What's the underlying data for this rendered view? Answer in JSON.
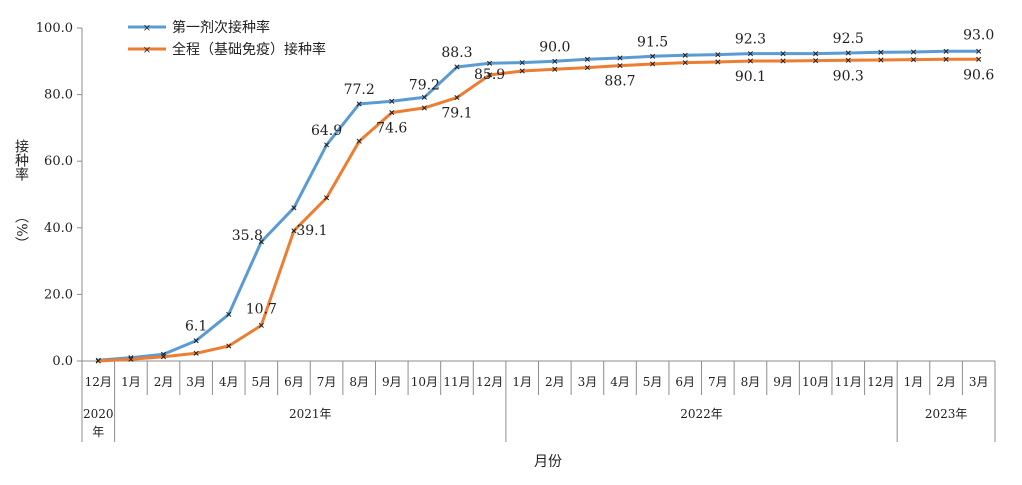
{
  "chart_data": {
    "type": "line",
    "xlabel": "月份",
    "ylabel": "接种率",
    "ylabel_unit": "（%）",
    "ylim": [
      0,
      100
    ],
    "yticks": [
      "0.0",
      "20.0",
      "40.0",
      "60.0",
      "80.0",
      "100.0"
    ],
    "categories": [
      "12月",
      "1月",
      "2月",
      "3月",
      "4月",
      "5月",
      "6月",
      "7月",
      "8月",
      "9月",
      "10月",
      "11月",
      "12月",
      "1月",
      "2月",
      "3月",
      "4月",
      "5月",
      "6月",
      "7月",
      "8月",
      "9月",
      "10月",
      "11月",
      "12月",
      "1月",
      "2月",
      "3月"
    ],
    "year_groups": [
      {
        "label": "2020年",
        "start": 0,
        "end": 0
      },
      {
        "label": "2021年",
        "start": 1,
        "end": 12
      },
      {
        "label": "2022年",
        "start": 13,
        "end": 24
      },
      {
        "label": "2023年",
        "start": 25,
        "end": 27
      }
    ],
    "legend_position": "top-left",
    "grid": false,
    "series": [
      {
        "name": "第一剂次接种率",
        "color": "#5B9BD5",
        "values": [
          0.2,
          1.0,
          2.0,
          6.1,
          14.0,
          35.8,
          46.0,
          64.9,
          77.2,
          78.0,
          79.2,
          88.3,
          89.4,
          89.6,
          90.0,
          90.6,
          91.0,
          91.5,
          91.8,
          92.0,
          92.3,
          92.3,
          92.3,
          92.5,
          92.7,
          92.8,
          93.0,
          93.0
        ],
        "labels": {
          "3": "6.1",
          "5": "35.8",
          "7": "64.9",
          "8": "77.2",
          "10": "79.2",
          "11": "88.3",
          "14": "90.0",
          "17": "91.5",
          "20": "92.3",
          "23": "92.5",
          "27": "93.0"
        }
      },
      {
        "name": "全程（基础免疫）接种率",
        "color": "#ED7D31",
        "values": [
          0.0,
          0.5,
          1.3,
          2.3,
          4.5,
          10.7,
          39.1,
          49.0,
          66.0,
          74.6,
          76.0,
          79.1,
          85.9,
          87.1,
          87.6,
          88.1,
          88.7,
          89.2,
          89.6,
          89.8,
          90.1,
          90.1,
          90.2,
          90.3,
          90.4,
          90.5,
          90.6,
          90.6
        ],
        "labels": {
          "5": "10.7",
          "6": "39.1",
          "9": "74.6",
          "11": "79.1",
          "12": "85.9",
          "16": "88.7",
          "20": "90.1",
          "23": "90.3",
          "27": "90.6"
        }
      }
    ]
  }
}
